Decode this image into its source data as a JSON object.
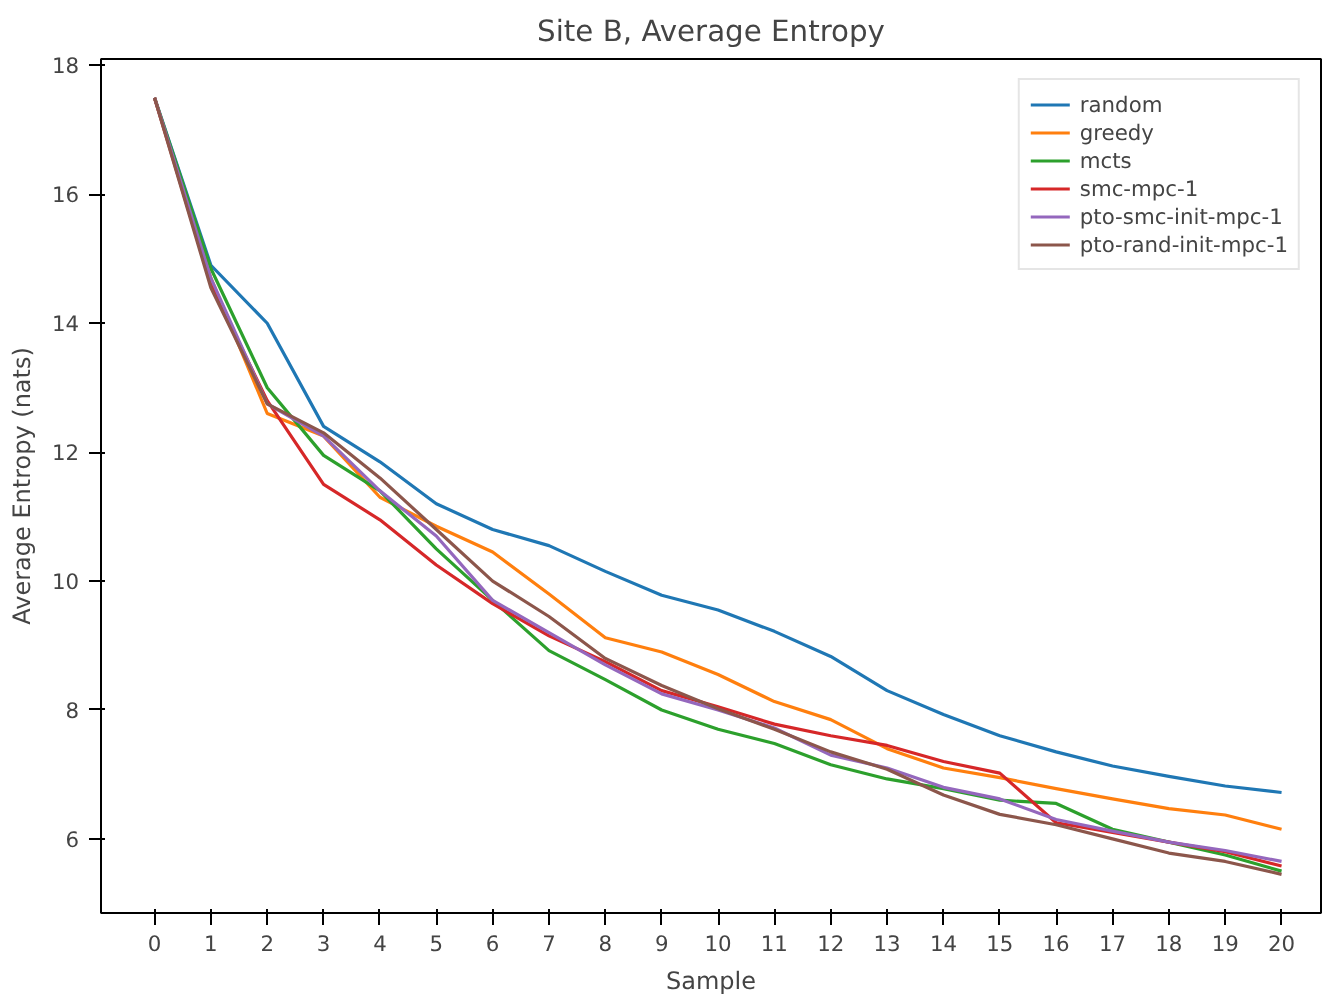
{
  "chart_data": {
    "type": "line",
    "title": "Site B, Average Entropy",
    "xlabel": "Sample",
    "ylabel": "Average Entropy (nats)",
    "x": [
      0,
      1,
      2,
      3,
      4,
      5,
      6,
      7,
      8,
      9,
      10,
      11,
      12,
      13,
      14,
      15,
      16,
      17,
      18,
      19,
      20
    ],
    "xlim": [
      -0.95,
      20.7
    ],
    "ylim": [
      4.85,
      18.1
    ],
    "xticks": [
      0,
      1,
      2,
      3,
      4,
      5,
      6,
      7,
      8,
      9,
      10,
      11,
      12,
      13,
      14,
      15,
      16,
      17,
      18,
      19,
      20
    ],
    "yticks": [
      6,
      8,
      10,
      12,
      14,
      16,
      18
    ],
    "legend": "top right",
    "grid": false,
    "marker": "none",
    "line_style": "solid",
    "series": [
      {
        "name": "random",
        "color": "#1f77b4",
        "values": [
          17.5,
          14.9,
          14.0,
          12.4,
          11.85,
          11.2,
          10.8,
          10.55,
          10.15,
          9.78,
          9.55,
          9.22,
          8.83,
          8.3,
          7.93,
          7.6,
          7.35,
          7.13,
          6.97,
          6.82,
          6.72
        ]
      },
      {
        "name": "greedy",
        "color": "#ff7f0e",
        "values": [
          17.5,
          14.7,
          12.6,
          12.25,
          11.3,
          10.85,
          10.45,
          9.8,
          9.12,
          8.9,
          8.55,
          8.13,
          7.85,
          7.4,
          7.1,
          6.95,
          6.78,
          6.62,
          6.47,
          6.37,
          6.15
        ]
      },
      {
        "name": "mcts",
        "color": "#2ca02c",
        "values": [
          17.5,
          14.85,
          13.0,
          11.95,
          11.4,
          10.5,
          9.7,
          8.92,
          8.47,
          8.0,
          7.7,
          7.48,
          7.15,
          6.93,
          6.78,
          6.6,
          6.55,
          6.15,
          5.95,
          5.75,
          5.5
        ]
      },
      {
        "name": "smc-mpc-1",
        "color": "#d62728",
        "values": [
          17.5,
          14.6,
          12.8,
          11.5,
          10.95,
          10.25,
          9.65,
          9.15,
          8.75,
          8.3,
          8.05,
          7.78,
          7.6,
          7.45,
          7.2,
          7.02,
          6.25,
          6.1,
          5.95,
          5.8,
          5.58
        ]
      },
      {
        "name": "pto-smc-init-mpc-1",
        "color": "#9467bd",
        "values": [
          17.5,
          14.7,
          12.75,
          12.25,
          11.4,
          10.7,
          9.7,
          9.2,
          8.7,
          8.25,
          8.0,
          7.72,
          7.3,
          7.1,
          6.8,
          6.62,
          6.3,
          6.12,
          5.95,
          5.82,
          5.65
        ]
      },
      {
        "name": "pto-rand-init-mpc-1",
        "color": "#8c564b",
        "values": [
          17.5,
          14.55,
          12.75,
          12.3,
          11.6,
          10.8,
          10.0,
          9.45,
          8.8,
          8.38,
          8.02,
          7.7,
          7.35,
          7.08,
          6.68,
          6.38,
          6.22,
          6.0,
          5.78,
          5.65,
          5.45
        ]
      }
    ]
  }
}
